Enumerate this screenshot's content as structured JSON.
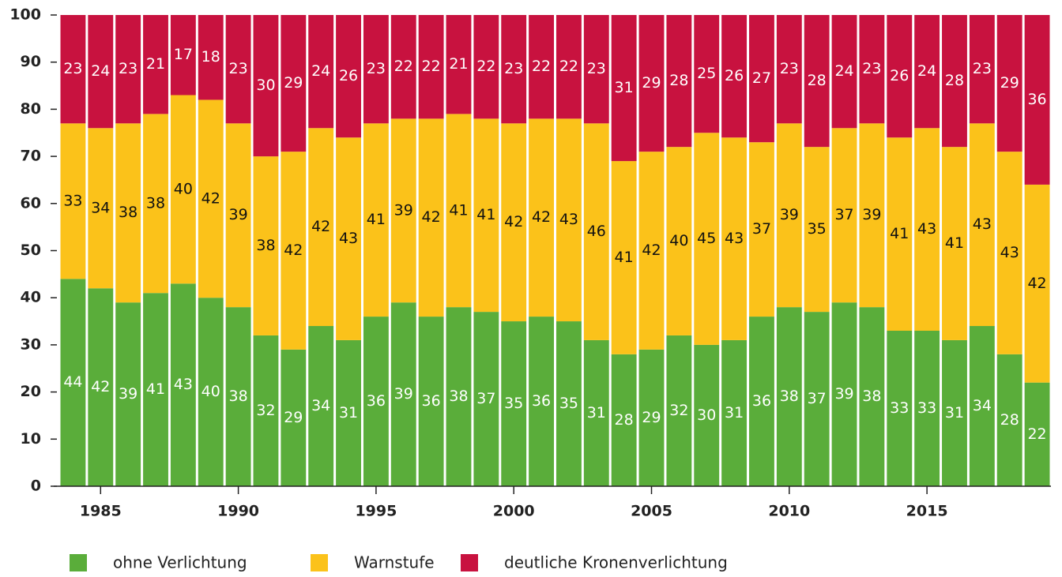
{
  "chart_data": {
    "type": "stacked_bar",
    "categories": [
      null,
      1985,
      null,
      null,
      null,
      null,
      1990,
      null,
      null,
      null,
      null,
      1995,
      null,
      null,
      null,
      null,
      2000,
      null,
      null,
      null,
      null,
      2005,
      null,
      null,
      null,
      null,
      2010,
      null,
      null,
      null,
      null,
      2015,
      null,
      null,
      null,
      null
    ],
    "series": [
      {
        "name": "ohne Verlichtung",
        "color": "#5aad3a",
        "values": [
          44,
          42,
          39,
          41,
          43,
          40,
          38,
          32,
          29,
          34,
          31,
          36,
          39,
          36,
          38,
          37,
          35,
          36,
          35,
          31,
          28,
          29,
          32,
          30,
          31,
          36,
          38,
          37,
          39,
          38,
          33,
          33,
          31,
          34,
          28,
          22
        ]
      },
      {
        "name": "Warnstufe",
        "color": "#fbc21a",
        "values": [
          33,
          34,
          38,
          38,
          40,
          42,
          39,
          38,
          42,
          42,
          43,
          41,
          39,
          42,
          41,
          41,
          42,
          42,
          43,
          46,
          41,
          42,
          40,
          45,
          43,
          37,
          39,
          35,
          37,
          39,
          41,
          43,
          41,
          43,
          43,
          42
        ]
      },
      {
        "name": "deutliche Kronenverlichtung",
        "color": "#c8123f",
        "values": [
          23,
          24,
          23,
          21,
          17,
          18,
          23,
          30,
          29,
          24,
          26,
          23,
          22,
          22,
          21,
          22,
          23,
          22,
          22,
          23,
          31,
          29,
          28,
          25,
          26,
          27,
          23,
          28,
          24,
          23,
          26,
          24,
          28,
          23,
          29,
          36
        ]
      }
    ],
    "ylim": [
      0,
      100
    ],
    "yticks": [
      0,
      10,
      20,
      30,
      40,
      50,
      60,
      70,
      80,
      90,
      100
    ],
    "legend": "bottom"
  }
}
